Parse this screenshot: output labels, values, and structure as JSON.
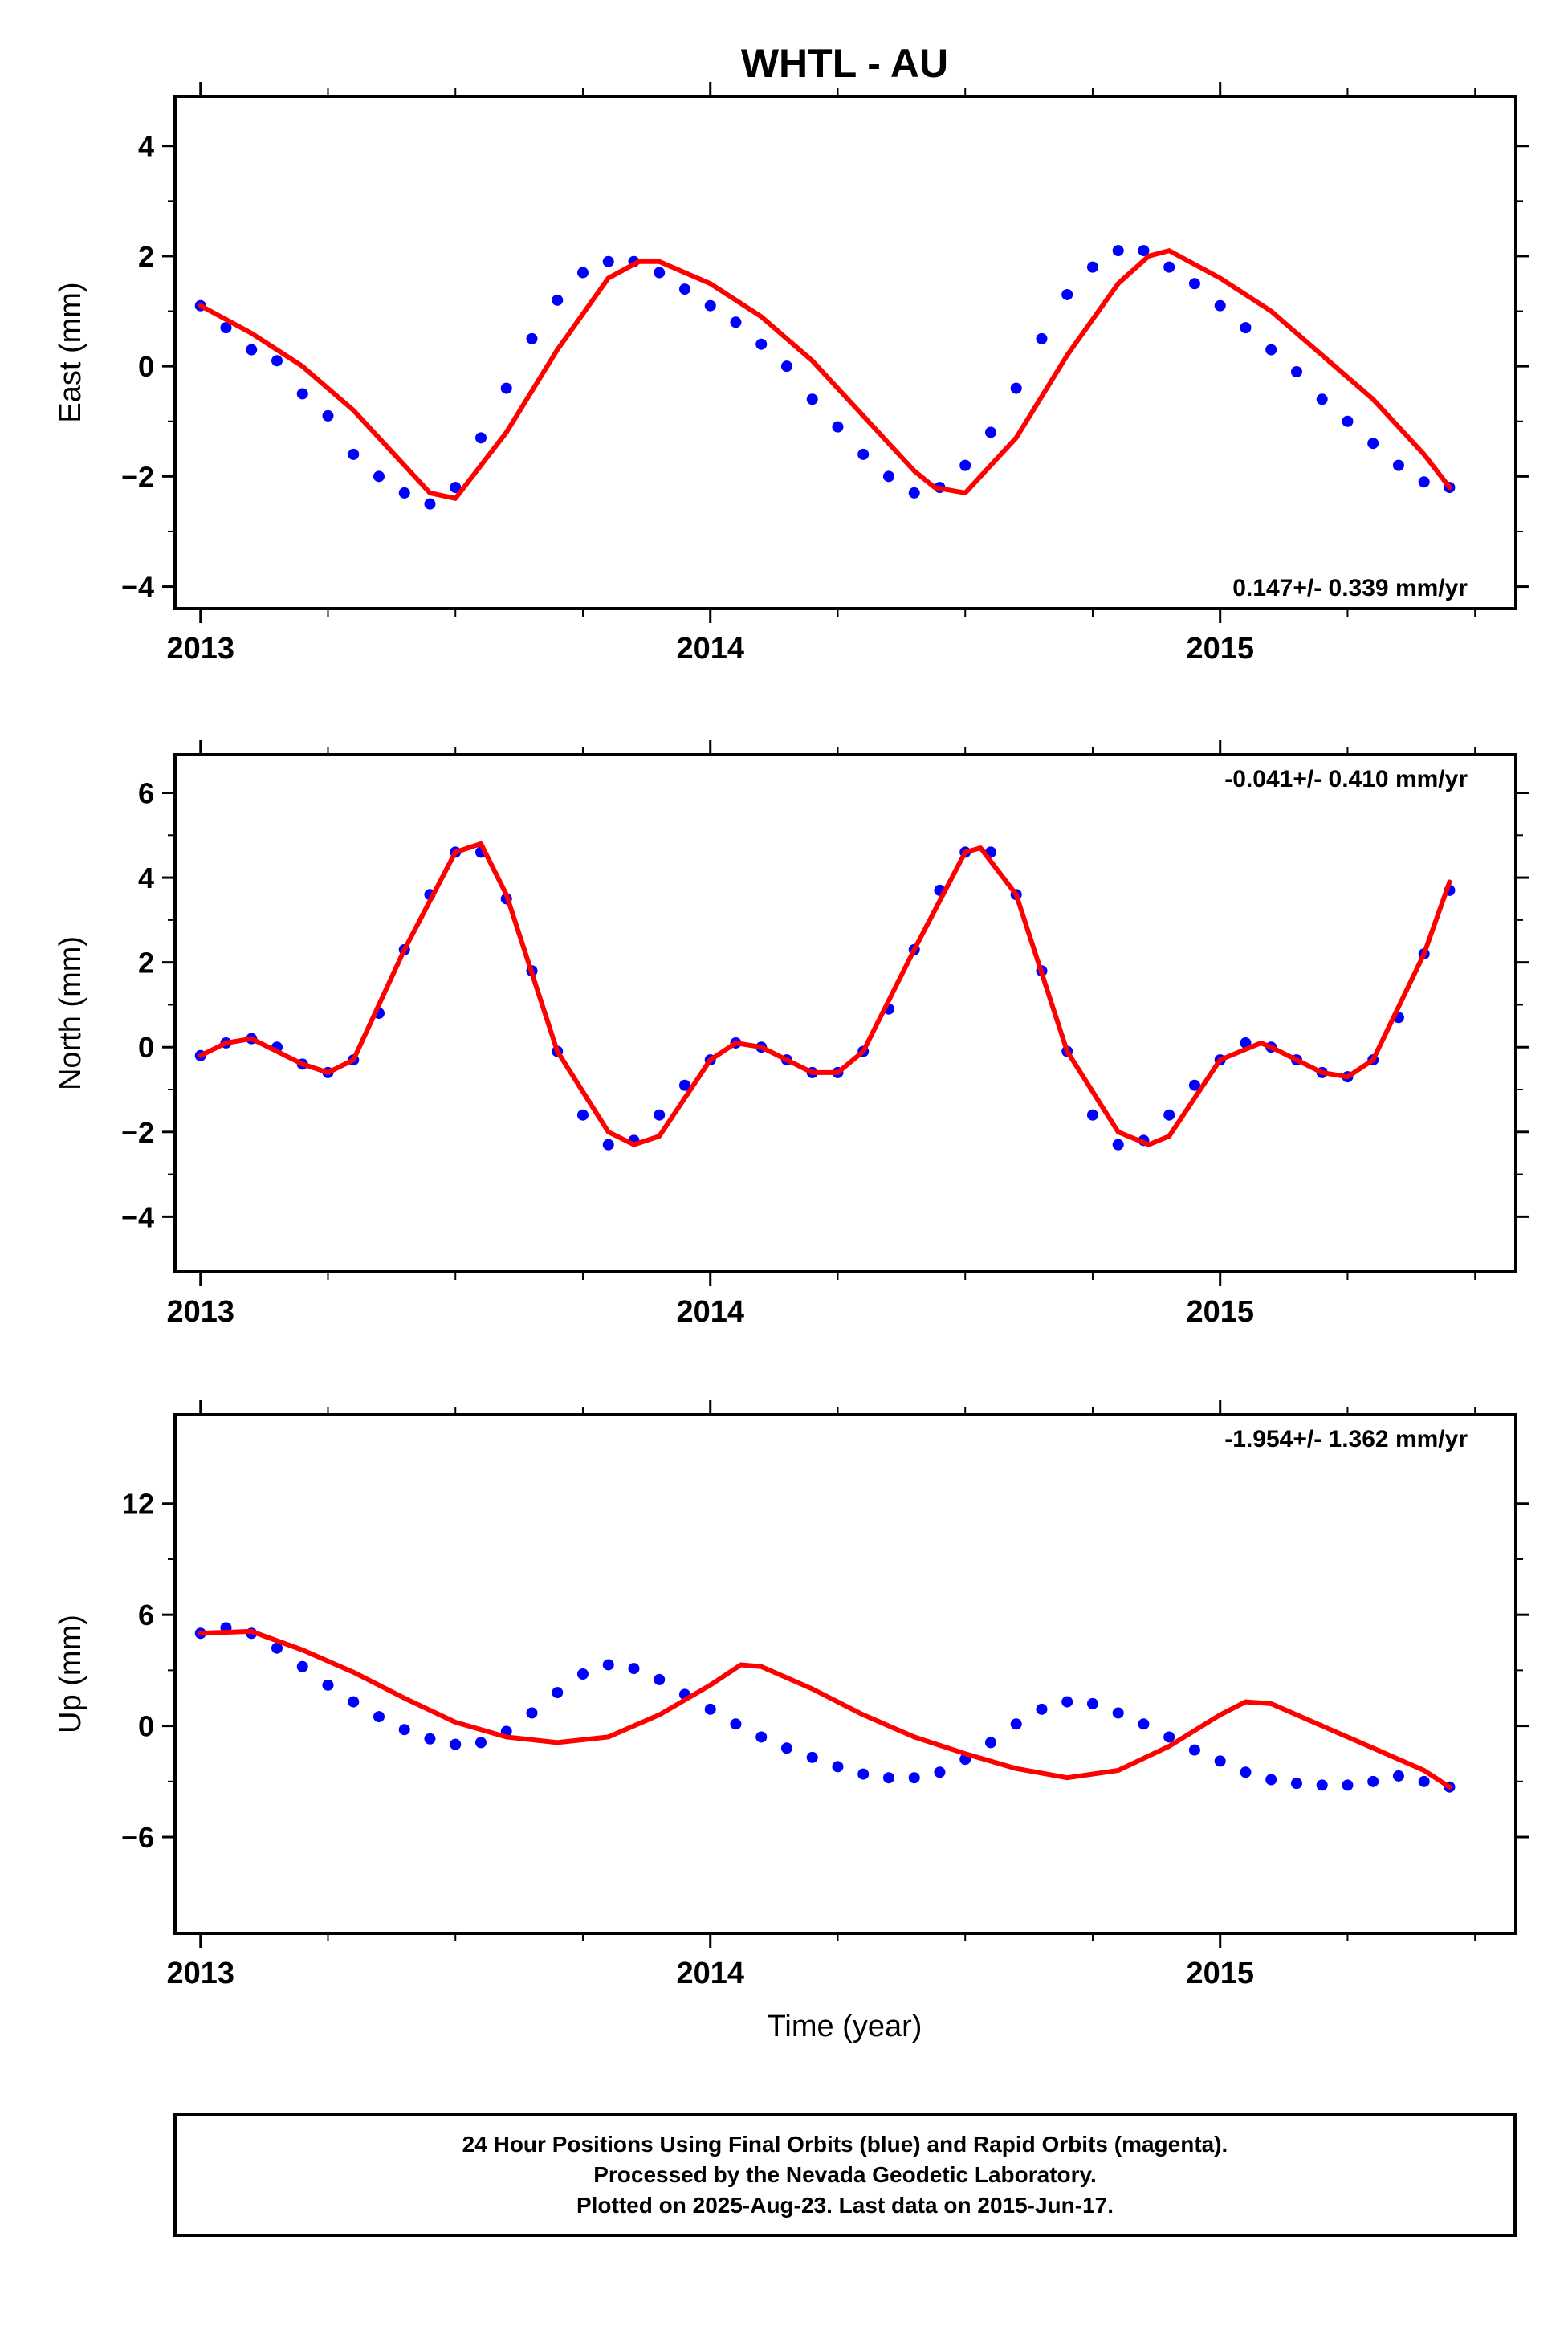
{
  "figure": {
    "title": "WHTL - AU",
    "xlabel": "Time (year)",
    "colors": {
      "points": "#0000ff",
      "fit": "#ff0000",
      "frame": "#000000"
    }
  },
  "footer": {
    "line1": "24 Hour Positions Using Final Orbits (blue) and Rapid Orbits (magenta).",
    "line2": "Processed by the Nevada Geodetic Laboratory.",
    "line3": "Plotted on 2025-Aug-23. Last data on 2015-Jun-17."
  },
  "chart_data": [
    {
      "type": "scatter",
      "name": "east",
      "ylabel": "East (mm)",
      "xlim": [
        2012.95,
        2015.58
      ],
      "ylim": [
        -4.4,
        4.9
      ],
      "xticks": [
        2013,
        2014,
        2015
      ],
      "xtick_labels": [
        "2013",
        "2014",
        "2015"
      ],
      "yticks": [
        -4,
        -2,
        0,
        2,
        4
      ],
      "ytick_labels": [
        "−4",
        "−2",
        "0",
        "2",
        "4"
      ],
      "rate_label": "0.147+/- 0.339 mm/yr",
      "rate_position": "bottom-right",
      "series": [
        {
          "kind": "observations",
          "color": "#0000ff",
          "x": [
            2013.0,
            2013.05,
            2013.1,
            2013.15,
            2013.2,
            2013.25,
            2013.3,
            2013.35,
            2013.4,
            2013.45,
            2013.5,
            2013.55,
            2013.6,
            2013.65,
            2013.7,
            2013.75,
            2013.8,
            2013.85,
            2013.9,
            2013.95,
            2014.0,
            2014.05,
            2014.1,
            2014.15,
            2014.2,
            2014.25,
            2014.3,
            2014.35,
            2014.4,
            2014.45,
            2014.5,
            2014.55,
            2014.6,
            2014.65,
            2014.7,
            2014.75,
            2014.8,
            2014.85,
            2014.9,
            2014.95,
            2015.0,
            2015.05,
            2015.1,
            2015.15,
            2015.2,
            2015.25,
            2015.3,
            2015.35,
            2015.4,
            2015.45
          ],
          "y": [
            1.1,
            0.7,
            0.3,
            0.1,
            -0.5,
            -0.9,
            -1.6,
            -2.0,
            -2.3,
            -2.5,
            -2.2,
            -1.3,
            -0.4,
            0.5,
            1.2,
            1.7,
            1.9,
            1.9,
            1.7,
            1.4,
            1.1,
            0.8,
            0.4,
            0.0,
            -0.6,
            -1.1,
            -1.6,
            -2.0,
            -2.3,
            -2.2,
            -1.8,
            -1.2,
            -0.4,
            0.5,
            1.3,
            1.8,
            2.1,
            2.1,
            1.8,
            1.5,
            1.1,
            0.7,
            0.3,
            -0.1,
            -0.6,
            -1.0,
            -1.4,
            -1.8,
            -2.1,
            -2.2
          ]
        },
        {
          "kind": "fit",
          "color": "#ff0000",
          "x": [
            2013.0,
            2013.1,
            2013.2,
            2013.3,
            2013.4,
            2013.45,
            2013.5,
            2013.6,
            2013.7,
            2013.8,
            2013.86,
            2013.9,
            2014.0,
            2014.1,
            2014.2,
            2014.3,
            2014.4,
            2014.44,
            2014.5,
            2014.6,
            2014.7,
            2014.8,
            2014.86,
            2014.9,
            2015.0,
            2015.1,
            2015.2,
            2015.3,
            2015.4,
            2015.45
          ],
          "y": [
            1.1,
            0.6,
            0.0,
            -0.8,
            -1.8,
            -2.3,
            -2.4,
            -1.2,
            0.3,
            1.6,
            1.9,
            1.9,
            1.5,
            0.9,
            0.1,
            -0.9,
            -1.9,
            -2.2,
            -2.3,
            -1.3,
            0.2,
            1.5,
            2.0,
            2.1,
            1.6,
            1.0,
            0.2,
            -0.6,
            -1.6,
            -2.2
          ]
        }
      ]
    },
    {
      "type": "scatter",
      "name": "north",
      "ylabel": "North (mm)",
      "xlim": [
        2012.95,
        2015.58
      ],
      "ylim": [
        -5.3,
        6.9
      ],
      "xticks": [
        2013,
        2014,
        2015
      ],
      "xtick_labels": [
        "2013",
        "2014",
        "2015"
      ],
      "yticks": [
        -4,
        -2,
        0,
        2,
        4,
        6
      ],
      "ytick_labels": [
        "−4",
        "−2",
        "0",
        "2",
        "4",
        "6"
      ],
      "rate_label": "-0.041+/- 0.410 mm/yr",
      "rate_position": "top-right",
      "series": [
        {
          "kind": "observations",
          "color": "#0000ff",
          "x": [
            2013.0,
            2013.05,
            2013.1,
            2013.15,
            2013.2,
            2013.25,
            2013.3,
            2013.35,
            2013.4,
            2013.45,
            2013.5,
            2013.55,
            2013.6,
            2013.65,
            2013.7,
            2013.75,
            2013.8,
            2013.85,
            2013.9,
            2013.95,
            2014.0,
            2014.05,
            2014.1,
            2014.15,
            2014.2,
            2014.25,
            2014.3,
            2014.35,
            2014.4,
            2014.45,
            2014.5,
            2014.55,
            2014.6,
            2014.65,
            2014.7,
            2014.75,
            2014.8,
            2014.85,
            2014.9,
            2014.95,
            2015.0,
            2015.05,
            2015.1,
            2015.15,
            2015.2,
            2015.25,
            2015.3,
            2015.35,
            2015.4,
            2015.45
          ],
          "y": [
            -0.2,
            0.1,
            0.2,
            0.0,
            -0.4,
            -0.6,
            -0.3,
            0.8,
            2.3,
            3.6,
            4.6,
            4.6,
            3.5,
            1.8,
            -0.1,
            -1.6,
            -2.3,
            -2.2,
            -1.6,
            -0.9,
            -0.3,
            0.1,
            0.0,
            -0.3,
            -0.6,
            -0.6,
            -0.1,
            0.9,
            2.3,
            3.7,
            4.6,
            4.6,
            3.6,
            1.8,
            -0.1,
            -1.6,
            -2.3,
            -2.2,
            -1.6,
            -0.9,
            -0.3,
            0.1,
            0.0,
            -0.3,
            -0.6,
            -0.7,
            -0.3,
            0.7,
            2.2,
            3.7
          ]
        },
        {
          "kind": "fit",
          "color": "#ff0000",
          "x": [
            2013.0,
            2013.05,
            2013.1,
            2013.2,
            2013.25,
            2013.3,
            2013.4,
            2013.5,
            2013.55,
            2013.6,
            2013.7,
            2013.8,
            2013.85,
            2013.9,
            2014.0,
            2014.05,
            2014.1,
            2014.2,
            2014.25,
            2014.3,
            2014.4,
            2014.5,
            2014.53,
            2014.6,
            2014.7,
            2014.8,
            2014.86,
            2014.9,
            2015.0,
            2015.08,
            2015.1,
            2015.2,
            2015.25,
            2015.3,
            2015.4,
            2015.45
          ],
          "y": [
            -0.2,
            0.1,
            0.2,
            -0.4,
            -0.6,
            -0.3,
            2.3,
            4.6,
            4.8,
            3.6,
            -0.1,
            -2.0,
            -2.3,
            -2.1,
            -0.3,
            0.1,
            0.0,
            -0.6,
            -0.6,
            -0.1,
            2.3,
            4.6,
            4.7,
            3.6,
            -0.1,
            -2.0,
            -2.3,
            -2.1,
            -0.3,
            0.1,
            0.0,
            -0.6,
            -0.7,
            -0.3,
            2.2,
            3.9
          ]
        }
      ]
    },
    {
      "type": "scatter",
      "name": "up",
      "ylabel": "Up (mm)",
      "xlim": [
        2012.95,
        2015.58
      ],
      "ylim": [
        -11.2,
        16.8
      ],
      "xticks": [
        2013,
        2014,
        2015
      ],
      "xtick_labels": [
        "2013",
        "2014",
        "2015"
      ],
      "yticks": [
        -6,
        0,
        6,
        12
      ],
      "ytick_labels": [
        "−6",
        "0",
        "6",
        "12"
      ],
      "rate_label": "-1.954+/- 1.362 mm/yr",
      "rate_position": "top-right",
      "series": [
        {
          "kind": "observations",
          "color": "#0000ff",
          "x": [
            2013.0,
            2013.05,
            2013.1,
            2013.15,
            2013.2,
            2013.25,
            2013.3,
            2013.35,
            2013.4,
            2013.45,
            2013.5,
            2013.55,
            2013.6,
            2013.65,
            2013.7,
            2013.75,
            2013.8,
            2013.85,
            2013.9,
            2013.95,
            2014.0,
            2014.05,
            2014.1,
            2014.15,
            2014.2,
            2014.25,
            2014.3,
            2014.35,
            2014.4,
            2014.45,
            2014.5,
            2014.55,
            2014.6,
            2014.65,
            2014.7,
            2014.75,
            2014.8,
            2014.85,
            2014.9,
            2014.95,
            2015.0,
            2015.05,
            2015.1,
            2015.15,
            2015.2,
            2015.25,
            2015.3,
            2015.35,
            2015.4,
            2015.45
          ],
          "y": [
            5.0,
            5.3,
            5.0,
            4.2,
            3.2,
            2.2,
            1.3,
            0.5,
            -0.2,
            -0.7,
            -1.0,
            -0.9,
            -0.3,
            0.7,
            1.8,
            2.8,
            3.3,
            3.1,
            2.5,
            1.7,
            0.9,
            0.1,
            -0.6,
            -1.2,
            -1.7,
            -2.2,
            -2.6,
            -2.8,
            -2.8,
            -2.5,
            -1.8,
            -0.9,
            0.1,
            0.9,
            1.3,
            1.2,
            0.7,
            0.1,
            -0.6,
            -1.3,
            -1.9,
            -2.5,
            -2.9,
            -3.1,
            -3.2,
            -3.2,
            -3.0,
            -2.7,
            -3.0,
            -3.3
          ]
        },
        {
          "kind": "fit",
          "color": "#ff0000",
          "x": [
            2013.0,
            2013.1,
            2013.2,
            2013.3,
            2013.4,
            2013.5,
            2013.6,
            2013.7,
            2013.8,
            2013.9,
            2014.0,
            2014.06,
            2014.1,
            2014.2,
            2014.3,
            2014.4,
            2014.5,
            2014.6,
            2014.7,
            2014.8,
            2014.9,
            2015.0,
            2015.05,
            2015.1,
            2015.2,
            2015.3,
            2015.4,
            2015.45
          ],
          "y": [
            5.0,
            5.1,
            4.1,
            2.9,
            1.5,
            0.2,
            -0.6,
            -0.9,
            -0.6,
            0.6,
            2.2,
            3.3,
            3.2,
            2.0,
            0.6,
            -0.6,
            -1.5,
            -2.3,
            -2.8,
            -2.4,
            -1.1,
            0.6,
            1.3,
            1.2,
            0.0,
            -1.2,
            -2.4,
            -3.3
          ]
        }
      ]
    }
  ]
}
